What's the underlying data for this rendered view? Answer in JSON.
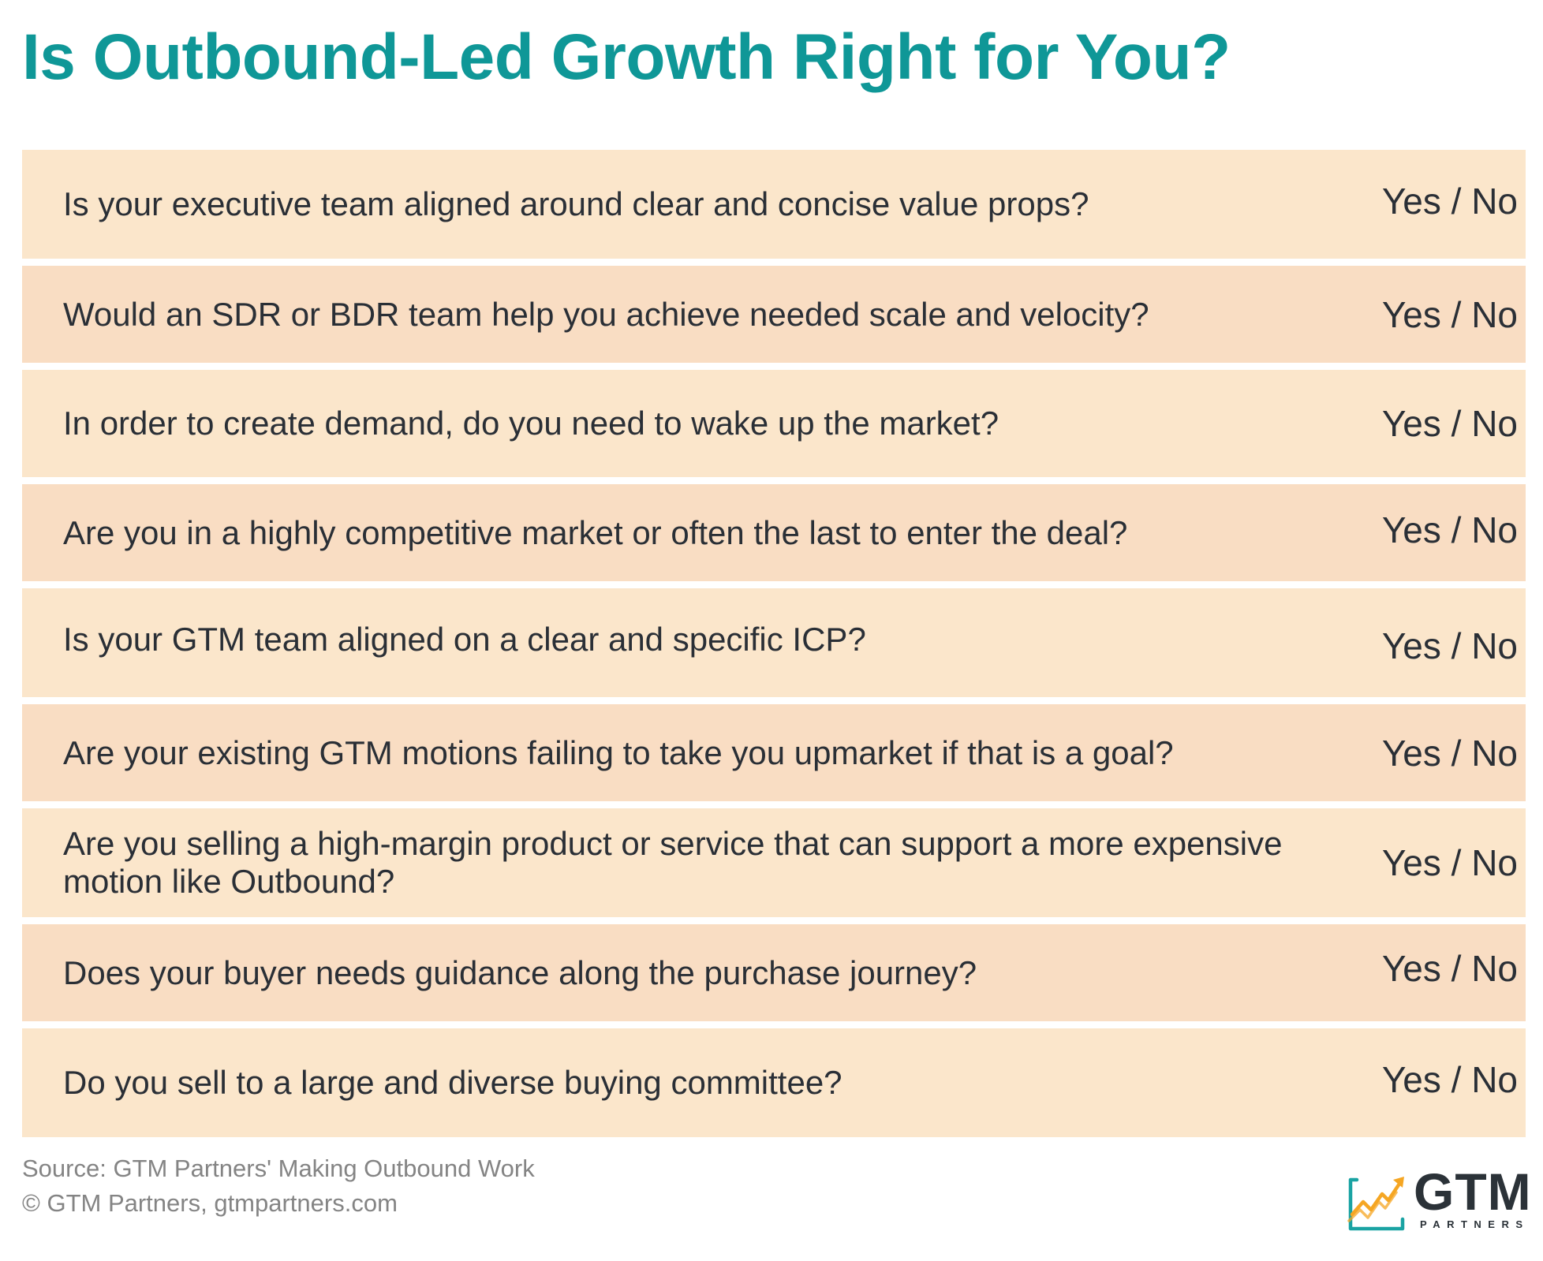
{
  "title": "Is Outbound-Led Growth Right for You?",
  "rows": [
    {
      "question": "Is your executive team aligned around clear and concise value props?",
      "answer": "Yes / No"
    },
    {
      "question": "Would an SDR or BDR team help you achieve needed scale and velocity?",
      "answer": "Yes / No"
    },
    {
      "question": "In order to create demand, do you need to wake up the market?",
      "answer": "Yes / No"
    },
    {
      "question": "Are you in a highly competitive market or often the last to enter the deal?",
      "answer": "Yes / No"
    },
    {
      "question": "Is your GTM team aligned on a clear and specific ICP?",
      "answer": "Yes / No"
    },
    {
      "question": "Are your existing GTM motions failing to take you upmarket if that is a goal?",
      "answer": "Yes / No"
    },
    {
      "question": "Are you selling a high-margin product or service that can support a more expensive motion like Outbound?",
      "answer": "Yes / No"
    },
    {
      "question": "Does your buyer needs guidance along the purchase journey?",
      "answer": "Yes / No"
    },
    {
      "question": "Do you sell to a large and diverse buying committee?",
      "answer": "Yes / No"
    }
  ],
  "footer": {
    "source": "Source: GTM Partners' Making Outbound Work",
    "copyright": "© GTM Partners, gtmpartners.com"
  },
  "logo": {
    "name": "GTM",
    "tagline": "PARTNERS",
    "icon": "growth-chart-icon"
  },
  "colors": {
    "title": "#0f9797",
    "row_light": "#fbe6cb",
    "row_dark": "#f9ddc3",
    "text": "#2a2f36",
    "footer_text": "#848484",
    "logo_teal": "#1aa3a3",
    "logo_orange": "#f5a623"
  }
}
